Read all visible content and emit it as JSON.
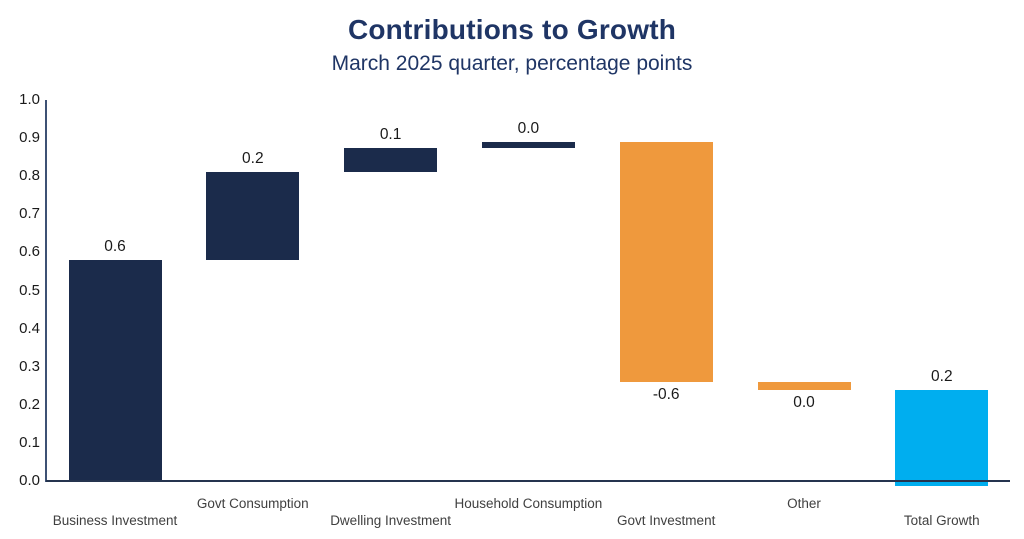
{
  "header": {
    "title": "Contributions to Growth",
    "subtitle": "March 2025 quarter, percentage points"
  },
  "colors": {
    "navy": "#1b2b4b",
    "orange": "#ef993d",
    "blue": "#00aeef",
    "title": "#1f3565",
    "axis": "#3d5174",
    "baseline": "#25344f",
    "tick_text": "#1a1a1a",
    "category_text": "#404040"
  },
  "chart_data": {
    "type": "bar",
    "subtype": "waterfall",
    "title": "Contributions to Growth",
    "subtitle": "March 2025 quarter, percentage points",
    "ylim": [
      0.0,
      1.0
    ],
    "ytick_labels": [
      "1.0",
      "0.9",
      "0.8",
      "0.7",
      "0.6",
      "0.5",
      "0.4",
      "0.3",
      "0.2",
      "0.1",
      "0.0"
    ],
    "grid": false,
    "legend": false,
    "bars": [
      {
        "category": "Business Investment",
        "label": "0.6",
        "value": 0.6,
        "start": 0.0,
        "end": 0.58,
        "color": "navy",
        "label_position": "above",
        "row": "lower"
      },
      {
        "category": "Govt Consumption",
        "label": "0.2",
        "value": 0.2,
        "start": 0.58,
        "end": 0.81,
        "color": "navy",
        "label_position": "above",
        "row": "upper"
      },
      {
        "category": "Dwelling Investment",
        "label": "0.1",
        "value": 0.1,
        "start": 0.81,
        "end": 0.875,
        "color": "navy",
        "label_position": "above",
        "row": "lower"
      },
      {
        "category": "Household Consumption",
        "label": "0.0",
        "value": 0.0,
        "start": 0.875,
        "end": 0.89,
        "color": "navy",
        "label_position": "above",
        "row": "upper"
      },
      {
        "category": "Govt Investment",
        "label": "-0.6",
        "value": -0.6,
        "start": 0.89,
        "end": 0.26,
        "color": "orange",
        "label_position": "below",
        "row": "lower"
      },
      {
        "category": "Other",
        "label": "0.0",
        "value": 0.0,
        "start": 0.26,
        "end": 0.24,
        "color": "orange",
        "label_position": "below",
        "row": "upper"
      },
      {
        "category": "Total Growth",
        "label": "0.2",
        "value": 0.2,
        "start": 0.0,
        "end": 0.24,
        "color": "blue",
        "label_position": "above",
        "row": "lower"
      }
    ]
  }
}
